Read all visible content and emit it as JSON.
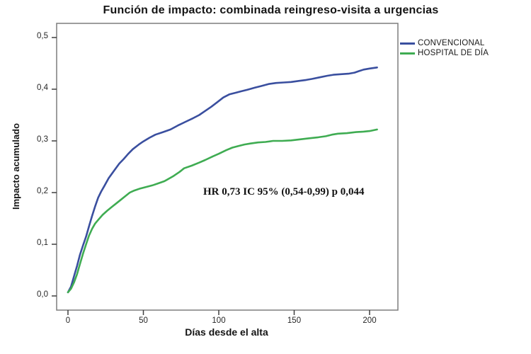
{
  "chart_data": {
    "type": "line",
    "title": "Función de impacto: combinada reingreso-visita a urgencias",
    "xlabel": "Días desde el alta",
    "ylabel": "Impacto acumulado",
    "annotation": "HR 0,73 IC 95% (0,54-0,99) p 0,044",
    "xlim": [
      0,
      219
    ],
    "ylim": [
      0,
      0.5
    ],
    "grid": false,
    "legend_position": "right-top",
    "x_ticks": [
      {
        "value": 0,
        "label": "0"
      },
      {
        "value": 50,
        "label": "50"
      },
      {
        "value": 100,
        "label": "100"
      },
      {
        "value": 150,
        "label": "150"
      },
      {
        "value": 200,
        "label": "200"
      }
    ],
    "y_ticks": [
      {
        "value": 0.0,
        "label": "0,0"
      },
      {
        "value": 0.1,
        "label": "0,1"
      },
      {
        "value": 0.2,
        "label": "0,2"
      },
      {
        "value": 0.3,
        "label": "0,3"
      },
      {
        "value": 0.4,
        "label": "0,4"
      },
      {
        "value": 0.5,
        "label": "0,5"
      }
    ],
    "series": [
      {
        "name": "CONVENCIONAL",
        "color": "#3A4F9F",
        "points": [
          [
            0,
            0.007
          ],
          [
            2,
            0.018
          ],
          [
            4,
            0.038
          ],
          [
            6,
            0.058
          ],
          [
            8,
            0.08
          ],
          [
            10,
            0.098
          ],
          [
            12,
            0.115
          ],
          [
            14,
            0.135
          ],
          [
            16,
            0.155
          ],
          [
            18,
            0.173
          ],
          [
            20,
            0.19
          ],
          [
            22,
            0.202
          ],
          [
            24,
            0.212
          ],
          [
            27,
            0.228
          ],
          [
            29,
            0.236
          ],
          [
            31,
            0.244
          ],
          [
            34,
            0.256
          ],
          [
            37,
            0.265
          ],
          [
            40,
            0.275
          ],
          [
            43,
            0.284
          ],
          [
            47,
            0.293
          ],
          [
            50,
            0.299
          ],
          [
            54,
            0.306
          ],
          [
            58,
            0.312
          ],
          [
            63,
            0.317
          ],
          [
            68,
            0.322
          ],
          [
            73,
            0.33
          ],
          [
            78,
            0.337
          ],
          [
            83,
            0.344
          ],
          [
            87,
            0.35
          ],
          [
            91,
            0.358
          ],
          [
            95,
            0.366
          ],
          [
            99,
            0.375
          ],
          [
            103,
            0.384
          ],
          [
            107,
            0.39
          ],
          [
            111,
            0.393
          ],
          [
            115,
            0.396
          ],
          [
            119,
            0.399
          ],
          [
            124,
            0.403
          ],
          [
            128,
            0.406
          ],
          [
            133,
            0.41
          ],
          [
            138,
            0.412
          ],
          [
            143,
            0.413
          ],
          [
            148,
            0.414
          ],
          [
            153,
            0.416
          ],
          [
            158,
            0.418
          ],
          [
            162,
            0.42
          ],
          [
            167,
            0.423
          ],
          [
            172,
            0.426
          ],
          [
            176,
            0.428
          ],
          [
            181,
            0.429
          ],
          [
            186,
            0.43
          ],
          [
            190,
            0.432
          ],
          [
            193,
            0.435
          ],
          [
            196,
            0.438
          ],
          [
            200,
            0.44
          ],
          [
            205,
            0.442
          ]
        ]
      },
      {
        "name": "HOSPITAL DE DÍA",
        "color": "#3FAC52",
        "points": [
          [
            0,
            0.007
          ],
          [
            2,
            0.014
          ],
          [
            4,
            0.026
          ],
          [
            6,
            0.042
          ],
          [
            8,
            0.062
          ],
          [
            10,
            0.082
          ],
          [
            12,
            0.1
          ],
          [
            14,
            0.117
          ],
          [
            16,
            0.13
          ],
          [
            18,
            0.14
          ],
          [
            20,
            0.147
          ],
          [
            23,
            0.157
          ],
          [
            26,
            0.165
          ],
          [
            29,
            0.172
          ],
          [
            32,
            0.179
          ],
          [
            35,
            0.186
          ],
          [
            38,
            0.193
          ],
          [
            41,
            0.2
          ],
          [
            44,
            0.204
          ],
          [
            48,
            0.208
          ],
          [
            52,
            0.211
          ],
          [
            56,
            0.214
          ],
          [
            60,
            0.218
          ],
          [
            64,
            0.222
          ],
          [
            67,
            0.227
          ],
          [
            70,
            0.232
          ],
          [
            74,
            0.24
          ],
          [
            77,
            0.247
          ],
          [
            82,
            0.252
          ],
          [
            87,
            0.258
          ],
          [
            91,
            0.263
          ],
          [
            96,
            0.27
          ],
          [
            100,
            0.275
          ],
          [
            105,
            0.282
          ],
          [
            109,
            0.287
          ],
          [
            113,
            0.29
          ],
          [
            117,
            0.293
          ],
          [
            121,
            0.295
          ],
          [
            126,
            0.297
          ],
          [
            131,
            0.298
          ],
          [
            136,
            0.3
          ],
          [
            142,
            0.3
          ],
          [
            148,
            0.301
          ],
          [
            154,
            0.303
          ],
          [
            160,
            0.305
          ],
          [
            166,
            0.307
          ],
          [
            171,
            0.309
          ],
          [
            175,
            0.312
          ],
          [
            179,
            0.314
          ],
          [
            185,
            0.315
          ],
          [
            191,
            0.317
          ],
          [
            196,
            0.318
          ],
          [
            200,
            0.319
          ],
          [
            205,
            0.322
          ]
        ]
      }
    ]
  }
}
